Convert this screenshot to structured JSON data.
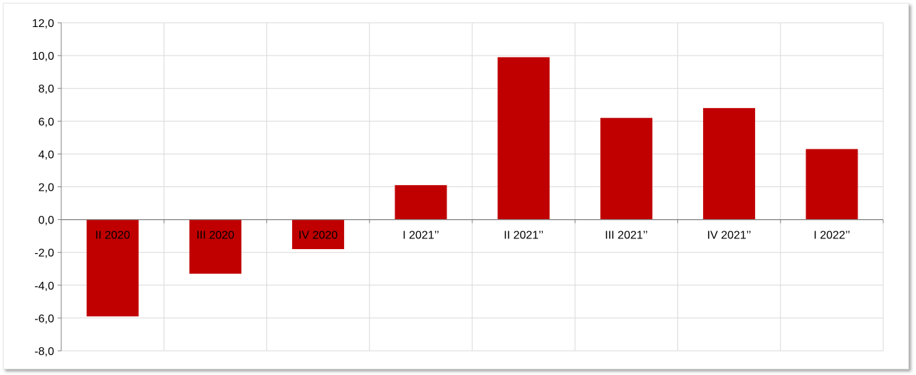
{
  "chart_data": {
    "type": "bar",
    "categories": [
      "II 2020",
      "III 2020",
      "IV 2020",
      "I 2021’’",
      "II 2021’’",
      "III 2021’’",
      "IV 2021’’",
      "I 2022’’"
    ],
    "values": [
      -5.9,
      -3.3,
      -1.8,
      2.1,
      9.9,
      6.2,
      6.8,
      4.3
    ],
    "title": "",
    "xlabel": "",
    "ylabel": "",
    "ylim": [
      -8,
      12
    ],
    "yticks": [
      "12,0",
      "10,0",
      "8,0",
      "6,0",
      "4,0",
      "2,0",
      "0,0",
      "-2,0",
      "-4,0",
      "-6,0",
      "-8,0"
    ],
    "grid": true,
    "legend": "none",
    "colors": {
      "bar": "#c00000",
      "grid": "#d9d9d9",
      "axis": "#808080"
    }
  }
}
